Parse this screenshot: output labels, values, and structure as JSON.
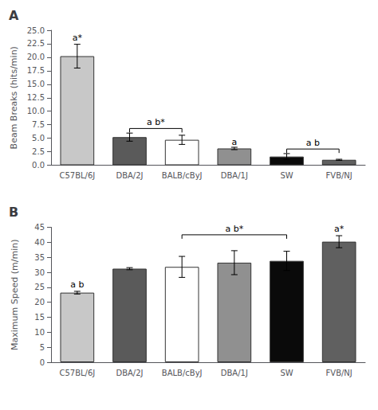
{
  "chart_data": [
    {
      "type": "bar",
      "title": "A",
      "categories": [
        "C57BL/6J",
        "DBA/2J",
        "BALB/cByJ",
        "DBA/1J",
        "SW",
        "FVB/NJ"
      ],
      "values": [
        20.2,
        5.2,
        4.7,
        3.1,
        1.6,
        1.0
      ],
      "errors": [
        2.2,
        0.75,
        0.85,
        0.22,
        0.55,
        0.1
      ],
      "colors": [
        "#c8c8c8",
        "#5a5a5a",
        "#ffffff",
        "#909090",
        "#0a0a0a",
        "#606060"
      ],
      "ylabel": "Beam Breaks (hits/min)",
      "ylim": [
        0,
        25.0
      ],
      "yticks": [
        {
          "value": 0,
          "label": "0.0"
        },
        2.5,
        {
          "value": 5.0,
          "label": "5.0"
        },
        7.5,
        {
          "value": 10.0,
          "label": "10.0"
        },
        12.5,
        {
          "value": 15.0,
          "label": "15.0"
        },
        17.5,
        {
          "value": 20.0,
          "label": "20.0"
        },
        22.5,
        {
          "value": 25.0,
          "label": "25.0"
        }
      ],
      "annotations": [
        {
          "text": "a*",
          "category": "C57BL/6J",
          "y": 22.8
        },
        {
          "text": "a",
          "category": "DBA/1J",
          "y": 3.45
        }
      ],
      "brackets": [
        {
          "text": "a b*",
          "from": "DBA/2J",
          "to": "BALB/cByJ",
          "y": 6.8
        },
        {
          "text": "a b",
          "from": "SW",
          "to": "FVB/NJ",
          "y": 3.0
        }
      ],
      "grid": false
    },
    {
      "type": "bar",
      "title": "B",
      "categories": [
        "C57BL/6J",
        "DBA/2J",
        "BALB/cByJ",
        "DBA/1J",
        "SW",
        "FVB/NJ"
      ],
      "values": [
        23.2,
        31.2,
        31.8,
        33.2,
        33.8,
        40.2
      ],
      "errors": [
        0.45,
        0.35,
        3.5,
        4.0,
        3.2,
        2.0
      ],
      "colors": [
        "#c8c8c8",
        "#5a5a5a",
        "#ffffff",
        "#909090",
        "#0a0a0a",
        "#606060"
      ],
      "ylabel": "Maximum Speed (m/min)",
      "ylim": [
        0,
        45
      ],
      "yticks": [
        0,
        5,
        10,
        15,
        20,
        25,
        30,
        35,
        40,
        45
      ],
      "annotations": [
        {
          "text": "a b",
          "category": "C57BL/6J",
          "y": 24.5
        },
        {
          "text": "a*",
          "category": "FVB/NJ",
          "y": 43.0
        }
      ],
      "brackets": [
        {
          "text": "a b*",
          "from": "BALB/cByJ",
          "to": "SW",
          "y": 42.5
        }
      ],
      "grid": false
    }
  ]
}
